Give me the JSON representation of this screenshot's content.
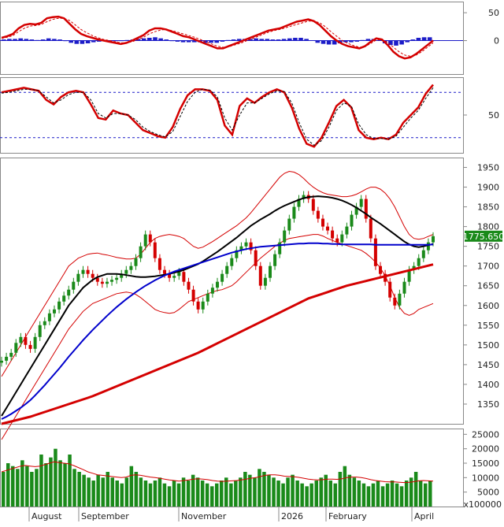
{
  "chart_data": [
    {
      "type": "line",
      "panel": "macd",
      "y_ticks": [
        50,
        0
      ],
      "series": [
        {
          "color": "#d40000",
          "values": [
            5,
            8,
            12,
            22,
            28,
            30,
            29,
            32,
            40,
            42,
            43,
            40,
            30,
            20,
            12,
            8,
            5,
            2,
            0,
            -2,
            -4,
            -6,
            -4,
            0,
            5,
            10,
            18,
            22,
            22,
            20,
            16,
            12,
            8,
            6,
            2,
            -2,
            -6,
            -10,
            -14,
            -14,
            -10,
            -6,
            -2,
            2,
            6,
            10,
            14,
            18,
            20,
            22,
            26,
            30,
            34,
            36,
            38,
            35,
            28,
            18,
            8,
            0,
            -6,
            -10,
            -12,
            -14,
            -10,
            -2,
            4,
            2,
            -8,
            -20,
            -28,
            -32,
            -30,
            -24,
            -16,
            -8,
            0
          ]
        },
        {
          "color": "#d40000",
          "values": [
            4,
            6,
            9,
            16,
            22,
            26,
            27,
            29,
            34,
            38,
            40,
            40,
            36,
            28,
            20,
            14,
            9,
            5,
            2,
            0,
            -2,
            -4,
            -4,
            -2,
            2,
            6,
            12,
            16,
            19,
            20,
            18,
            15,
            12,
            9,
            6,
            2,
            -2,
            -6,
            -10,
            -12,
            -11,
            -8,
            -5,
            -1,
            3,
            7,
            11,
            15,
            18,
            20,
            23,
            26,
            29,
            32,
            35,
            35,
            32,
            25,
            16,
            8,
            0,
            -5,
            -9,
            -12,
            -11,
            -5,
            1,
            2,
            -3,
            -12,
            -20,
            -26,
            -28,
            -26,
            -20,
            -12,
            -4
          ],
          "dash": true
        }
      ],
      "histogram": {
        "color": "#1c1cc8",
        "values": [
          2,
          3,
          3,
          4,
          3,
          2,
          1,
          2,
          4,
          3,
          2,
          -1,
          -4,
          -6,
          -6,
          -5,
          -3,
          -2,
          -1,
          -1,
          -1,
          -1,
          1,
          2,
          3,
          4,
          5,
          6,
          4,
          2,
          -1,
          -2,
          -3,
          -3,
          -3,
          -3,
          -4,
          -4,
          -4,
          -2,
          1,
          2,
          3,
          3,
          3,
          4,
          3,
          3,
          2,
          2,
          3,
          4,
          5,
          5,
          3,
          0,
          -4,
          -6,
          -7,
          -7,
          -5,
          -3,
          -3,
          -2,
          1,
          3,
          3,
          0,
          -5,
          -8,
          -9,
          -7,
          -3,
          2,
          5,
          6,
          6
        ]
      },
      "zero_line": {
        "color": "#1c1cc8",
        "value": 0
      }
    },
    {
      "type": "line",
      "panel": "stochastic",
      "y_ticks": [
        50
      ],
      "reference_lines": [
        80,
        20
      ],
      "series": [
        {
          "color": "#d40000",
          "values": [
            80,
            82,
            84,
            86,
            84,
            82,
            70,
            64,
            74,
            80,
            82,
            80,
            64,
            46,
            44,
            56,
            52,
            50,
            40,
            30,
            26,
            22,
            20,
            34,
            58,
            76,
            84,
            84,
            82,
            70,
            36,
            24,
            62,
            72,
            66,
            74,
            80,
            84,
            80,
            60,
            32,
            12,
            8,
            20,
            40,
            62,
            70,
            60,
            30,
            20,
            18,
            20,
            18,
            24,
            40,
            50,
            60,
            78,
            90
          ]
        },
        {
          "color": "#000000",
          "values": [
            79,
            80,
            82,
            84,
            84,
            82,
            74,
            66,
            70,
            77,
            80,
            80,
            70,
            52,
            46,
            52,
            52,
            50,
            44,
            34,
            28,
            24,
            21,
            28,
            48,
            68,
            80,
            84,
            83,
            74,
            46,
            30,
            50,
            66,
            66,
            72,
            78,
            82,
            81,
            66,
            40,
            18,
            10,
            16,
            34,
            56,
            66,
            62,
            38,
            24,
            19,
            19,
            18,
            22,
            34,
            46,
            56,
            72,
            86
          ],
          "dash": true
        }
      ]
    },
    {
      "type": "candlestick",
      "panel": "price",
      "y_ticks": [
        1950,
        1900,
        1850,
        1800,
        1750,
        1700,
        1650,
        1600,
        1550,
        1500,
        1450,
        1400,
        1350
      ],
      "ylim": [
        1300,
        1975
      ],
      "last_value_label": "1775.650",
      "close": [
        1460,
        1470,
        1480,
        1505,
        1520,
        1500,
        1490,
        1520,
        1550,
        1560,
        1580,
        1590,
        1610,
        1625,
        1640,
        1660,
        1680,
        1690,
        1680,
        1670,
        1660,
        1655,
        1660,
        1665,
        1670,
        1680,
        1690,
        1700,
        1720,
        1750,
        1780,
        1760,
        1720,
        1690,
        1680,
        1670,
        1675,
        1685,
        1660,
        1640,
        1610,
        1590,
        1610,
        1630,
        1645,
        1660,
        1680,
        1700,
        1720,
        1740,
        1750,
        1760,
        1740,
        1700,
        1650,
        1670,
        1700,
        1730,
        1760,
        1790,
        1820,
        1850,
        1870,
        1880,
        1870,
        1840,
        1820,
        1800,
        1790,
        1770,
        1760,
        1780,
        1800,
        1830,
        1850,
        1870,
        1820,
        1770,
        1700,
        1680,
        1660,
        1620,
        1600,
        1630,
        1660,
        1690,
        1700,
        1720,
        1740,
        1760,
        1775.65
      ],
      "ma_series": [
        {
          "period": "20",
          "color": "#000000",
          "values": [
            1320,
            1340,
            1360,
            1380,
            1400,
            1420,
            1440,
            1460,
            1480,
            1500,
            1520,
            1540,
            1560,
            1580,
            1600,
            1615,
            1630,
            1645,
            1655,
            1665,
            1672,
            1676,
            1680,
            1680,
            1680,
            1679,
            1677,
            1675,
            1673,
            1672,
            1672,
            1673,
            1674,
            1676,
            1678,
            1680,
            1683,
            1686,
            1690,
            1695,
            1700,
            1705,
            1712,
            1720,
            1728,
            1736,
            1745,
            1754,
            1763,
            1772,
            1782,
            1792,
            1802,
            1810,
            1818,
            1825,
            1832,
            1840,
            1847,
            1853,
            1858,
            1863,
            1868,
            1872,
            1875,
            1876,
            1877,
            1876,
            1875,
            1873,
            1870,
            1866,
            1861,
            1855,
            1848,
            1840,
            1832,
            1823,
            1815,
            1807,
            1798,
            1789,
            1780,
            1771,
            1762,
            1755,
            1750,
            1748,
            1750,
            1753,
            1756
          ]
        },
        {
          "period": "50",
          "color": "#0000cc",
          "values": [
            1312,
            1318,
            1325,
            1333,
            1341,
            1350,
            1360,
            1372,
            1385,
            1398,
            1412,
            1426,
            1440,
            1455,
            1470,
            1484,
            1498,
            1512,
            1525,
            1538,
            1550,
            1562,
            1574,
            1585,
            1596,
            1606,
            1616,
            1625,
            1634,
            1642,
            1650,
            1657,
            1664,
            1670,
            1676,
            1681,
            1686,
            1690,
            1694,
            1698,
            1702,
            1706,
            1710,
            1714,
            1718,
            1722,
            1726,
            1730,
            1734,
            1737,
            1740,
            1743,
            1745,
            1747,
            1749,
            1750,
            1751,
            1752,
            1753,
            1754,
            1755,
            1756,
            1757,
            1757,
            1758,
            1758,
            1758,
            1757,
            1757,
            1756,
            1756,
            1755,
            1755,
            1755,
            1755,
            1755,
            1755,
            1755,
            1754,
            1754,
            1754,
            1754,
            1754,
            1754,
            1754,
            1754,
            1754,
            1754,
            1754,
            1754,
            1755
          ]
        },
        {
          "period": "200",
          "color": "#d40000",
          "values": [
            1300,
            1303,
            1306,
            1309,
            1312,
            1315,
            1318,
            1322,
            1326,
            1330,
            1334,
            1338,
            1342,
            1346,
            1350,
            1354,
            1358,
            1362,
            1366,
            1370,
            1375,
            1380,
            1385,
            1390,
            1395,
            1400,
            1405,
            1410,
            1415,
            1420,
            1425,
            1430,
            1435,
            1440,
            1445,
            1450,
            1455,
            1460,
            1465,
            1470,
            1475,
            1480,
            1486,
            1492,
            1498,
            1504,
            1510,
            1516,
            1522,
            1528,
            1534,
            1540,
            1546,
            1552,
            1558,
            1564,
            1570,
            1576,
            1582,
            1588,
            1594,
            1600,
            1606,
            1612,
            1618,
            1622,
            1626,
            1630,
            1634,
            1638,
            1642,
            1646,
            1650,
            1653,
            1656,
            1659,
            1662,
            1665,
            1668,
            1671,
            1674,
            1677,
            1680,
            1683,
            1686,
            1689,
            1692,
            1695,
            1698,
            1701,
            1704
          ]
        }
      ],
      "bollinger": {
        "color": "#d40000",
        "upper": [
          1420,
          1440,
          1460,
          1480,
          1500,
          1520,
          1540,
          1560,
          1580,
          1600,
          1620,
          1640,
          1660,
          1680,
          1700,
          1710,
          1720,
          1725,
          1730,
          1732,
          1733,
          1730,
          1728,
          1725,
          1722,
          1720,
          1718,
          1718,
          1720,
          1730,
          1745,
          1760,
          1770,
          1775,
          1778,
          1780,
          1778,
          1775,
          1770,
          1760,
          1750,
          1745,
          1748,
          1755,
          1762,
          1770,
          1778,
          1786,
          1794,
          1802,
          1812,
          1822,
          1835,
          1850,
          1865,
          1880,
          1895,
          1910,
          1925,
          1935,
          1940,
          1938,
          1932,
          1922,
          1910,
          1900,
          1892,
          1886,
          1882,
          1880,
          1878,
          1876,
          1876,
          1878,
          1882,
          1888,
          1895,
          1900,
          1900,
          1895,
          1885,
          1870,
          1850,
          1825,
          1800,
          1780,
          1770,
          1768,
          1770,
          1775,
          1780
        ],
        "lower": [
          1260,
          1280,
          1300,
          1320,
          1340,
          1360,
          1380,
          1400,
          1420,
          1440,
          1460,
          1480,
          1500,
          1520,
          1540,
          1555,
          1570,
          1585,
          1595,
          1605,
          1610,
          1615,
          1620,
          1625,
          1630,
          1632,
          1634,
          1632,
          1628,
          1620,
          1610,
          1600,
          1590,
          1585,
          1582,
          1580,
          1582,
          1590,
          1600,
          1610,
          1615,
          1620,
          1625,
          1630,
          1634,
          1638,
          1640,
          1645,
          1650,
          1660,
          1672,
          1684,
          1696,
          1708,
          1720,
          1730,
          1740,
          1750,
          1758,
          1765,
          1770,
          1772,
          1774,
          1776,
          1778,
          1780,
          1780,
          1776,
          1770,
          1765,
          1760,
          1756,
          1752,
          1748,
          1744,
          1740,
          1732,
          1722,
          1710,
          1695,
          1675,
          1650,
          1620,
          1595,
          1580,
          1575,
          1580,
          1590,
          1595,
          1600,
          1605
        ]
      }
    },
    {
      "type": "bar",
      "panel": "volume",
      "y_ticks": [
        25000,
        20000,
        15000,
        10000,
        5000
      ],
      "ylim": [
        0,
        27000
      ],
      "unit_label": "x100000",
      "x_labels": [
        "August",
        "September",
        "November",
        "2026",
        "February",
        "April"
      ],
      "bar_color": "#1a8a1a",
      "values": [
        12000,
        15000,
        14000,
        13000,
        16000,
        14000,
        12000,
        13000,
        18000,
        15000,
        17000,
        20000,
        16000,
        15000,
        18000,
        13000,
        12000,
        11000,
        10000,
        9000,
        11000,
        10000,
        12000,
        10000,
        9000,
        8000,
        10000,
        14000,
        12000,
        10000,
        9000,
        8000,
        9000,
        10000,
        8000,
        7000,
        9000,
        8000,
        10000,
        9000,
        11000,
        10000,
        9000,
        8000,
        7000,
        8000,
        9000,
        10000,
        8000,
        9000,
        10000,
        12000,
        11000,
        10000,
        13000,
        12000,
        11000,
        10000,
        9000,
        8000,
        10000,
        11000,
        9000,
        8000,
        7000,
        8000,
        9000,
        10000,
        11000,
        9000,
        8000,
        12000,
        14000,
        11000,
        10000,
        9000,
        8000,
        7000,
        8000,
        9000,
        7000,
        8000,
        9000,
        8000,
        7000,
        9000,
        10000,
        12000,
        9000,
        8000,
        9000
      ],
      "ma_series": [
        {
          "color": "#d40000",
          "values": [
            12000,
            12500,
            13000,
            13500,
            14000,
            14200,
            14000,
            13800,
            14000,
            14500,
            15000,
            15500,
            15200,
            15000,
            14800,
            14200,
            13500,
            12800,
            12000,
            11500,
            11000,
            10800,
            10600,
            10400,
            10200,
            10000,
            10200,
            10800,
            11000,
            10800,
            10500,
            10200,
            10000,
            9800,
            9500,
            9200,
            9000,
            8800,
            9000,
            9200,
            9500,
            9600,
            9500,
            9300,
            9000,
            8800,
            8700,
            8800,
            8900,
            9000,
            9200,
            9500,
            9800,
            10000,
            10400,
            10800,
            11000,
            11000,
            10800,
            10500,
            10400,
            10300,
            10100,
            9800,
            9500,
            9300,
            9200,
            9300,
            9500,
            9500,
            9400,
            9600,
            10000,
            10200,
            10200,
            10000,
            9700,
            9300,
            9000,
            8800,
            8600,
            8500,
            8500,
            8400,
            8300,
            8400,
            8600,
            8900,
            9000,
            8900,
            8800
          ]
        }
      ]
    }
  ]
}
